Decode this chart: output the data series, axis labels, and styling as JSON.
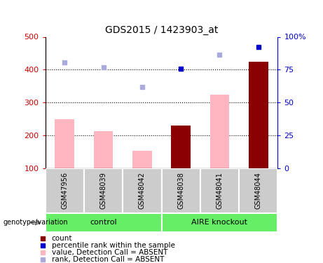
{
  "title": "GDS2015 / 1423903_at",
  "samples": [
    "GSM47956",
    "GSM48039",
    "GSM48042",
    "GSM48038",
    "GSM48041",
    "GSM48044"
  ],
  "bar_values": [
    250,
    213,
    153,
    230,
    325,
    425
  ],
  "bar_colors": [
    "#FFB6C1",
    "#FFB6C1",
    "#FFB6C1",
    "#8B0000",
    "#FFB6C1",
    "#8B0000"
  ],
  "rank_dots_left_scale": [
    422,
    408,
    348,
    402,
    445,
    470
  ],
  "rank_dot_colors": [
    "#AAAADD",
    "#AAAADD",
    "#AAAADD",
    "#0000CC",
    "#AAAADD",
    "#0000CC"
  ],
  "ylim_left": [
    100,
    500
  ],
  "yticks_left": [
    100,
    200,
    300,
    400,
    500
  ],
  "yticks_right": [
    0,
    25,
    50,
    75,
    100
  ],
  "ytick_labels_right": [
    "0",
    "25",
    "50",
    "75",
    "100%"
  ],
  "left_axis_color": "#CC0000",
  "right_axis_color": "#0000CC",
  "grid_lines": [
    200,
    300,
    400
  ],
  "legend_items": [
    {
      "label": "count",
      "color": "#8B0000"
    },
    {
      "label": "percentile rank within the sample",
      "color": "#0000CC"
    },
    {
      "label": "value, Detection Call = ABSENT",
      "color": "#FFB6C1"
    },
    {
      "label": "rank, Detection Call = ABSENT",
      "color": "#AAAADD"
    }
  ],
  "group_label": "genotype/variation",
  "group_boxes": [
    {
      "label": "control",
      "start": 0,
      "end": 3
    },
    {
      "label": "AIRE knockout",
      "start": 3,
      "end": 6
    }
  ],
  "bar_width": 0.5,
  "sample_box_color": "#CCCCCC",
  "group_box_color": "#66EE66"
}
